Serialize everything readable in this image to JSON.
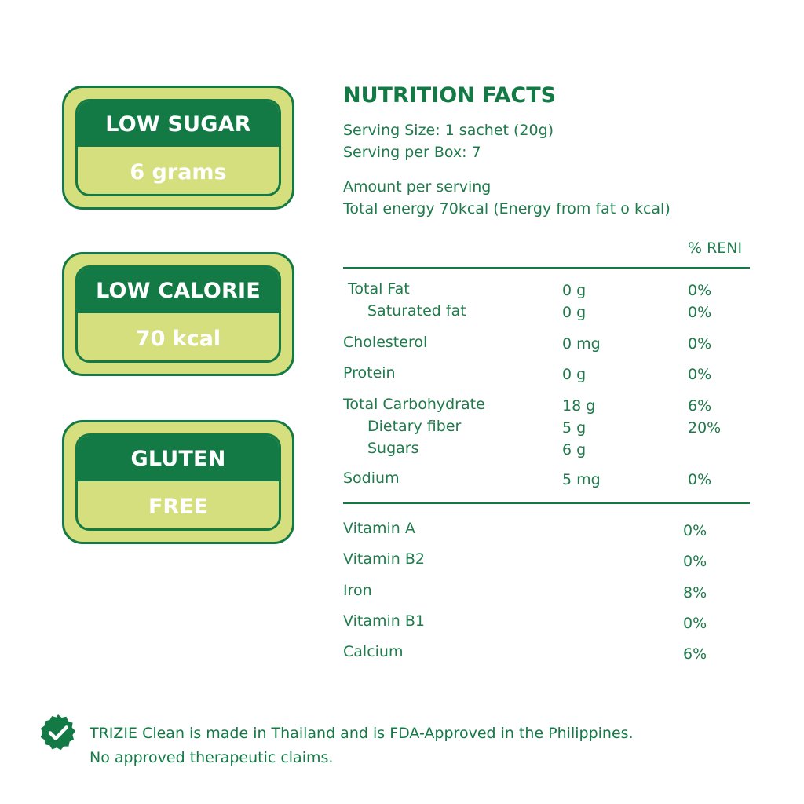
{
  "badges": [
    {
      "title": "LOW SUGAR",
      "value": "6 grams"
    },
    {
      "title": "LOW CALORIE",
      "value": "70 kcal"
    },
    {
      "title": "GLUTEN",
      "value": "FREE"
    }
  ],
  "nutrition": {
    "title": "NUTRITION FACTS",
    "serving_size": "Serving Size: 1 sachet (20g)",
    "serving_per_box": "Serving per Box: 7",
    "amount_per_serving": "Amount per serving",
    "total_energy": "Total energy 70kcal (Energy from fat o kcal)",
    "reni_header": "% RENI",
    "nutrients": [
      {
        "name": "Total Fat",
        "amount": "0 g",
        "reni": "0%"
      },
      {
        "name": "Saturated fat",
        "amount": "0 g",
        "reni": "0%"
      },
      {
        "name": "Cholesterol",
        "amount": "0 mg",
        "reni": "0%"
      },
      {
        "name": "Protein",
        "amount": "0 g",
        "reni": "0%"
      },
      {
        "name": "Total Carbohydrate",
        "amount": "18 g",
        "reni": "6%"
      },
      {
        "name": "Dietary fiber",
        "amount": "5 g",
        "reni": "20%"
      },
      {
        "name": "Sugars",
        "amount": "6 g",
        "reni": ""
      },
      {
        "name": "Sodium",
        "amount": "5 mg",
        "reni": "0%"
      }
    ],
    "vitamins": [
      {
        "name": "Vitamin A",
        "reni": "0%"
      },
      {
        "name": "Vitamin B2",
        "reni": "0%"
      },
      {
        "name": "Iron",
        "reni": "8%"
      },
      {
        "name": "Vitamin B1",
        "reni": "0%"
      },
      {
        "name": "Calcium",
        "reni": "6%"
      }
    ]
  },
  "footer": {
    "line1": "TRIZIE Clean is made in Thailand and is FDA-Approved in the Philippines.",
    "line2": "No approved therapeutic claims."
  },
  "colors": {
    "dark_green": "#137a45",
    "light_green": "#d6df7e",
    "text_green": "#1f7a4c"
  },
  "icons": {
    "footer_icon": "check-badge-icon"
  }
}
